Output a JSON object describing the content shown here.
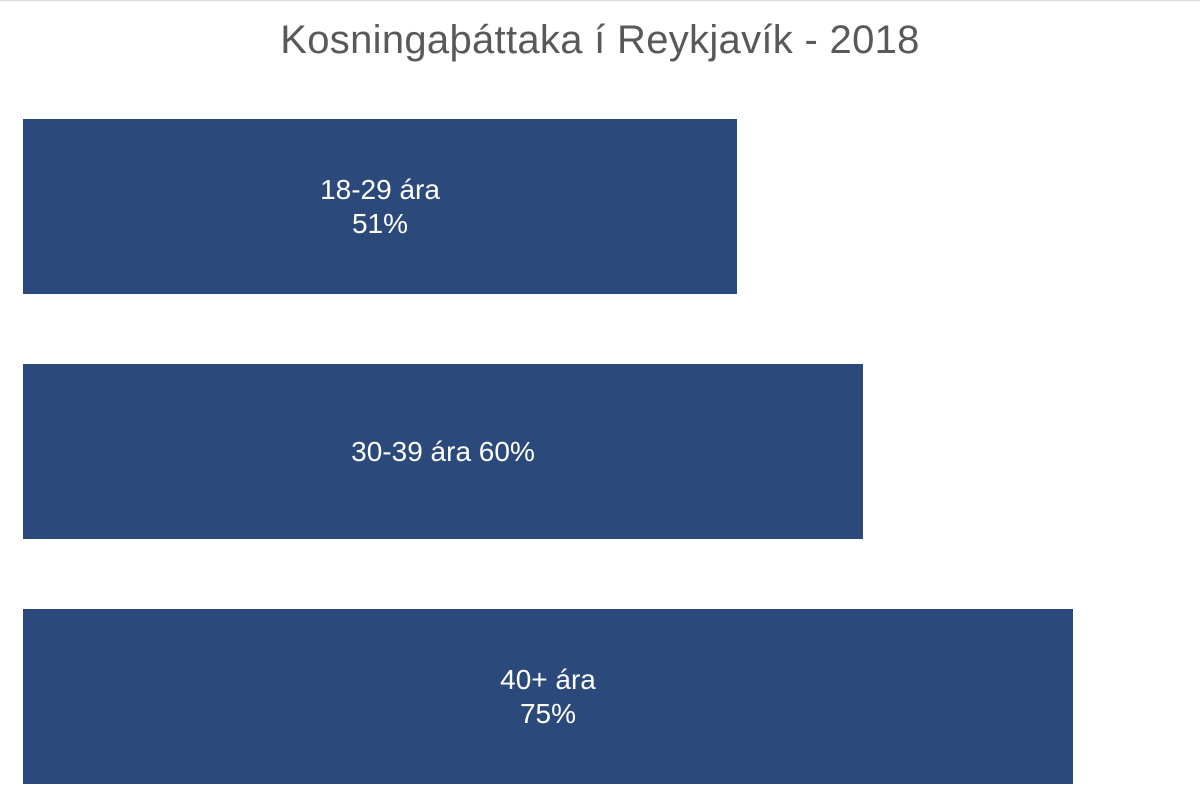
{
  "chart_data": {
    "type": "bar",
    "orientation": "horizontal",
    "title": "Kosningaþáttaka í Reykjavík - 2018",
    "categories": [
      "18-29 ára",
      "30-39 ára",
      "40+ ára"
    ],
    "values": [
      51,
      60,
      75
    ],
    "labels": [
      [
        "18-29 ára",
        "51%"
      ],
      [
        "30-39 ára 60%"
      ],
      [
        "40+ ára",
        "75%"
      ]
    ],
    "unit": "%",
    "grid": false,
    "legend": "none",
    "bar_color": "#2b4a7b"
  }
}
